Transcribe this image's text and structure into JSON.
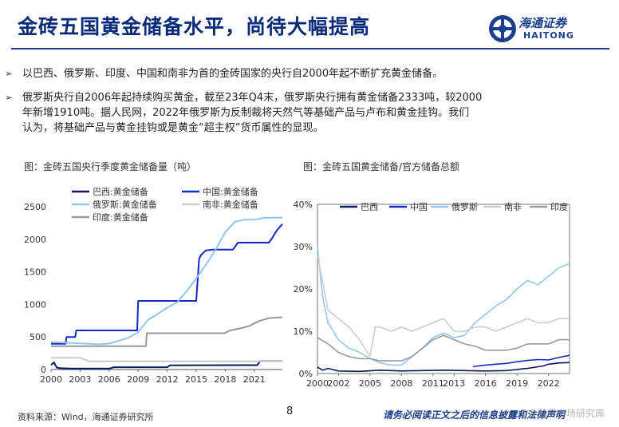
{
  "header": {
    "title": "金砖五国黄金储备水平，尚待大幅提高",
    "logo_cn": "海通证券",
    "logo_en": "HAITONG"
  },
  "bullets": [
    {
      "lines": [
        "以巴西、俄罗斯、印度、中国和南非为首的金砖国家的央行自2000年起不断扩充黄金储备。"
      ]
    },
    {
      "lines": [
        "俄罗斯央行自2006年起持续购买黄金，截至23年Q4末，俄罗斯央行拥有黄金储备2333吨，较2000",
        "年新增1910吨。据人民网，2022年俄罗斯为反制裁将天然气等基础产品与卢布和黄金挂钩。我们",
        "认为，将基础产品与黄金挂钩或是黄金“超主权”货币属性的显现。"
      ]
    }
  ],
  "chart_data": [
    {
      "type": "line",
      "caption": "图：金砖五国央行季度黄金储备量（吨）",
      "xlabels": [
        "2000",
        "2003",
        "2006",
        "2009",
        "2012",
        "2015",
        "2018",
        "2021"
      ],
      "xticks": [
        2000,
        2003,
        2006,
        2009,
        2012,
        2015,
        2018,
        2021
      ],
      "xlim": [
        2000,
        2023.9
      ],
      "ylim": [
        0,
        2500
      ],
      "yticks": [
        0,
        500,
        1000,
        1500,
        2000,
        2500
      ],
      "ylabels": [
        "0",
        "500",
        "1000",
        "1500",
        "2000",
        "2500"
      ],
      "series": [
        {
          "name": "巴西:黄金储备",
          "color": "#0a1a5c",
          "width": 2,
          "x": [
            2000,
            2000.3,
            2000.6,
            2001,
            2002,
            2006,
            2006.5,
            2010,
            2012,
            2012.3,
            2020,
            2021.3,
            2021.6,
            2023.9
          ],
          "y": [
            70,
            110,
            30,
            20,
            15,
            15,
            35,
            35,
            35,
            65,
            67,
            67,
            129,
            129
          ]
        },
        {
          "name": "中国:黄金储备",
          "color": "#1428c8",
          "width": 2,
          "x": [
            2000,
            2001.5,
            2001.6,
            2002.5,
            2002.6,
            2003,
            2003.1,
            2008.9,
            2009,
            2015,
            2015.3,
            2015.5,
            2016,
            2016.7,
            2018.8,
            2019.3,
            2019.7,
            2022.5,
            2022.8,
            2023.3,
            2023.9
          ],
          "y": [
            395,
            395,
            500,
            500,
            600,
            600,
            600,
            600,
            1054,
            1054,
            1700,
            1760,
            1830,
            1842,
            1842,
            1948,
            1948,
            1948,
            2010,
            2130,
            2235
          ]
        },
        {
          "name": "俄罗斯:黄金储备",
          "color": "#92c5f0",
          "width": 2,
          "x": [
            2000,
            2005,
            2006,
            2007,
            2008,
            2009,
            2010,
            2011,
            2012,
            2013,
            2014,
            2015,
            2016,
            2017,
            2018,
            2019,
            2020,
            2021,
            2022,
            2023,
            2023.9
          ],
          "y": [
            423,
            387,
            400,
            440,
            490,
            570,
            760,
            850,
            950,
            1030,
            1200,
            1400,
            1610,
            1840,
            2110,
            2270,
            2300,
            2300,
            2330,
            2330,
            2333
          ]
        },
        {
          "name": "南非:黄金储备",
          "color": "#cccccc",
          "width": 2,
          "x": [
            2000,
            2003,
            2004,
            2008,
            2012,
            2015,
            2018,
            2021,
            2023.9
          ],
          "y": [
            180,
            180,
            125,
            125,
            125,
            125,
            125,
            125,
            125
          ]
        },
        {
          "name": "印度:黄金储备",
          "color": "#999999",
          "width": 2,
          "x": [
            2000,
            2009.8,
            2009.9,
            2017.9,
            2018.5,
            2019.5,
            2020.5,
            2021.5,
            2022.5,
            2023.9
          ],
          "y": [
            358,
            358,
            558,
            558,
            600,
            630,
            670,
            745,
            790,
            803
          ]
        }
      ]
    },
    {
      "type": "line",
      "caption": "图：金砖五国黄金储备/官方储备总额",
      "xlabels": [
        "2000",
        "2002",
        "2005",
        "2008",
        "2011",
        "2013",
        "2016",
        "2019",
        "2022"
      ],
      "xticks": [
        2000,
        2002,
        2005,
        2008,
        2011,
        2013,
        2016,
        2019,
        2022
      ],
      "xlim": [
        2000,
        2024
      ],
      "ylim": [
        0,
        40
      ],
      "yticks": [
        0,
        10,
        20,
        30,
        40
      ],
      "ylabels": [
        "0%",
        "10%",
        "20%",
        "30%",
        "40%"
      ],
      "series": [
        {
          "name": "巴西",
          "color": "#0a1a5c",
          "width": 1.6,
          "x": [
            2000,
            2000.5,
            2001,
            2002,
            2004,
            2006,
            2008,
            2010,
            2012,
            2014,
            2016,
            2018,
            2020,
            2021.5,
            2022,
            2023,
            2024
          ],
          "y": [
            1.5,
            0.8,
            1.2,
            0.6,
            0.5,
            0.8,
            0.6,
            0.7,
            0.8,
            0.7,
            0.6,
            0.7,
            1.2,
            1.8,
            2.2,
            2.5,
            2.6
          ]
        },
        {
          "name": "中国",
          "color": "#1428c8",
          "width": 1.6,
          "x": [
            2014.8,
            2015,
            2016,
            2017,
            2018,
            2019,
            2020,
            2021,
            2022,
            2023,
            2024
          ],
          "y": [
            1.6,
            1.7,
            2.0,
            2.2,
            2.4,
            2.8,
            3.1,
            3.3,
            3.2,
            3.8,
            4.3
          ]
        },
        {
          "name": "俄罗斯",
          "color": "#92c5f0",
          "width": 1.6,
          "x": [
            2000,
            2000.5,
            2001,
            2002,
            2003,
            2004,
            2005,
            2006,
            2007,
            2008,
            2009,
            2010,
            2011,
            2012,
            2013,
            2014,
            2015,
            2016,
            2017,
            2018,
            2019,
            2020,
            2021,
            2022,
            2023,
            2024
          ],
          "y": [
            30,
            18,
            12,
            8,
            6,
            5,
            3.5,
            2.5,
            2,
            2,
            4,
            6,
            8.5,
            9.5,
            8.5,
            9,
            12,
            14,
            16,
            17.5,
            20,
            22,
            21,
            23,
            25,
            26
          ]
        },
        {
          "name": "南非",
          "color": "#cccccc",
          "width": 1.6,
          "x": [
            2000,
            2001,
            2002,
            2003,
            2004,
            2005,
            2005.5,
            2006,
            2007,
            2008,
            2009,
            2010,
            2011,
            2012,
            2013,
            2014,
            2015,
            2016,
            2017,
            2018,
            2019,
            2020,
            2021,
            2022,
            2023,
            2024
          ],
          "y": [
            28,
            15,
            13,
            11,
            8,
            4,
            11,
            11,
            10,
            11,
            10,
            11,
            12,
            13,
            10,
            10,
            11,
            11,
            10,
            11,
            12,
            13,
            12,
            12,
            13,
            13
          ]
        },
        {
          "name": "印度",
          "color": "#999999",
          "width": 1.6,
          "x": [
            2000,
            2001,
            2002,
            2003,
            2004,
            2005,
            2006,
            2007,
            2008,
            2009,
            2010,
            2011,
            2012,
            2013,
            2014,
            2015,
            2016,
            2017,
            2018,
            2019,
            2020,
            2021,
            2022,
            2023,
            2024
          ],
          "y": [
            8.5,
            7,
            5,
            4,
            3.5,
            3.5,
            3,
            3,
            3,
            4,
            6,
            8,
            9,
            8,
            7,
            6.5,
            5.5,
            5.5,
            5.5,
            6,
            7,
            7,
            7,
            8,
            8
          ]
        }
      ]
    }
  ],
  "footer": {
    "source": "资料来源：Wind，海通证券研究所",
    "page": "8",
    "notice": "请务必阅读正文之后的信息披露和法律声明",
    "watermark": "@金融界市场研究库"
  }
}
